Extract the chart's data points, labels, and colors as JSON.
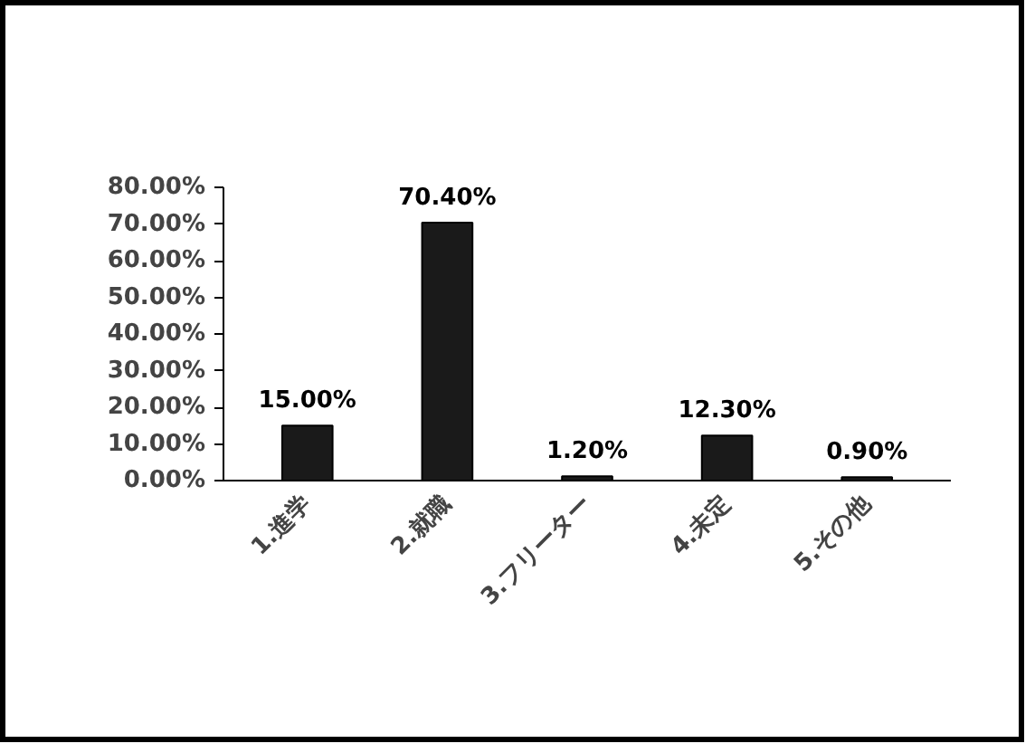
{
  "chart_data": {
    "type": "bar",
    "categories": [
      "1.進学",
      "2.就職",
      "3.フリーター",
      "4.未定",
      "5.その他"
    ],
    "values": [
      15.0,
      70.4,
      1.2,
      12.3,
      0.9
    ],
    "value_labels": [
      "15.00%",
      "70.40%",
      "1.20%",
      "12.30%",
      "0.90%"
    ],
    "color": "#1a1a1a",
    "ylim": [
      0,
      80
    ],
    "yticks": [
      {
        "value": 0,
        "label": "0.00%"
      },
      {
        "value": 10,
        "label": "10.00%"
      },
      {
        "value": 20,
        "label": "20.00%"
      },
      {
        "value": 30,
        "label": "30.00%"
      },
      {
        "value": 40,
        "label": "40.00%"
      },
      {
        "value": 50,
        "label": "50.00%"
      },
      {
        "value": 60,
        "label": "60.00%"
      },
      {
        "value": 70,
        "label": "70.00%"
      },
      {
        "value": 80,
        "label": "80.00%"
      }
    ],
    "grid": false
  }
}
